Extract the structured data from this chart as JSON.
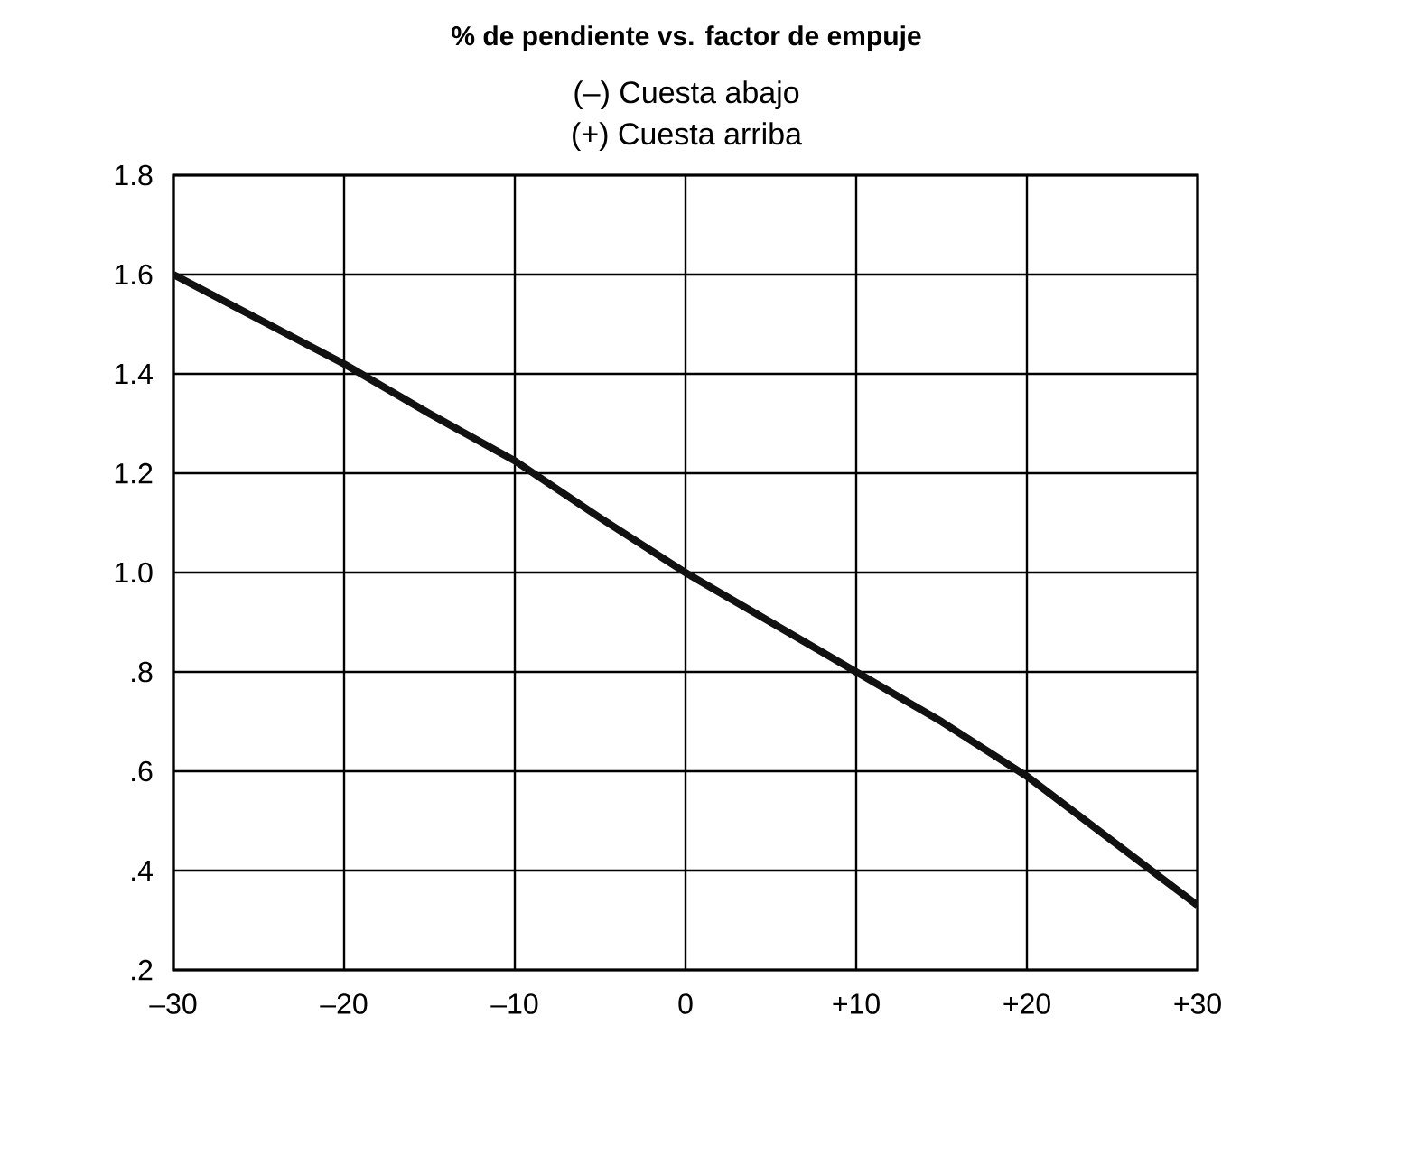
{
  "chart_data": {
    "type": "line",
    "title": "% de pendiente vs. factor de empuje",
    "subtitle": "(–) Cuesta abajo",
    "annotations": [
      "(+) Cuesta arriba"
    ],
    "x": [
      -30,
      -25,
      -20,
      -15,
      -10,
      -5,
      0,
      5,
      10,
      15,
      20,
      25,
      30
    ],
    "series": [
      {
        "color": "#111111",
        "values": [
          1.6,
          1.51,
          1.42,
          1.32,
          1.225,
          1.11,
          1.0,
          0.9,
          0.8,
          0.7,
          0.59,
          0.46,
          0.33
        ]
      }
    ],
    "xlim": [
      -30,
      30
    ],
    "xticks": [
      {
        "value": -30,
        "label": "–30"
      },
      {
        "value": -20,
        "label": "–20"
      },
      {
        "value": -10,
        "label": "–10"
      },
      0,
      {
        "value": 10,
        "label": "+10"
      },
      {
        "value": 20,
        "label": "+20"
      },
      {
        "value": 30,
        "label": "+30"
      }
    ],
    "ylim": [
      0.2,
      1.8
    ],
    "yticks": [
      {
        "value": 0.2,
        "label": ".2"
      },
      {
        "value": 0.4,
        "label": ".4"
      },
      {
        "value": 0.6,
        "label": ".6"
      },
      {
        "value": 0.8,
        "label": ".8"
      },
      {
        "value": 1.0,
        "label": "1.0"
      },
      1.2,
      1.4,
      1.6,
      1.8
    ],
    "grid": true,
    "marker": "none",
    "line_style": "solid"
  }
}
